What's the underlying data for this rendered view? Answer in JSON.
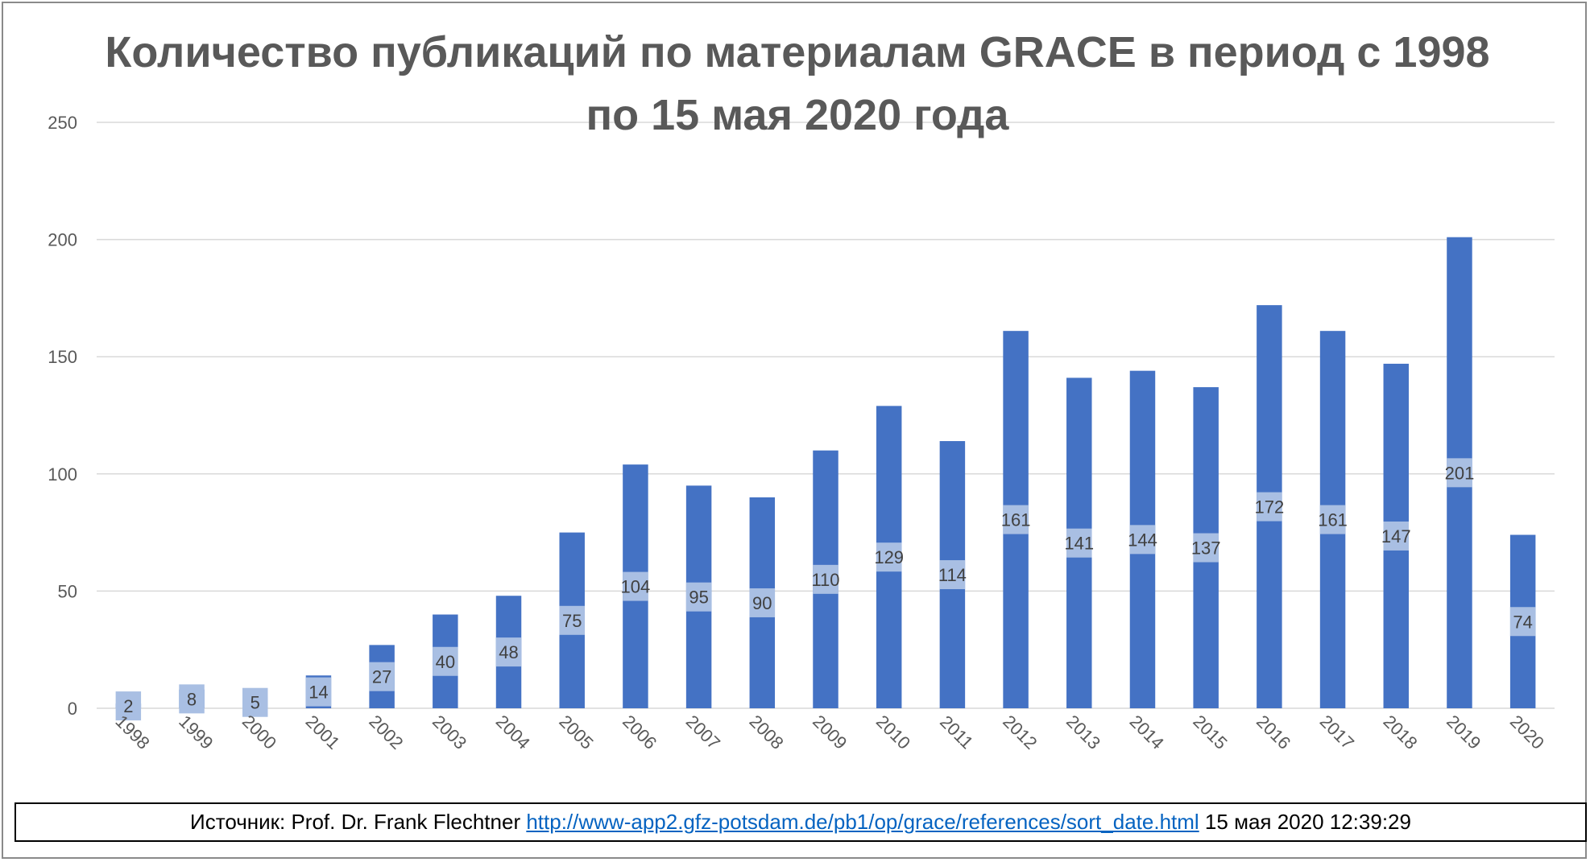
{
  "title": "Количество публикаций по материалам GRACE в период с 1998 по 15 мая 2020 года",
  "source": {
    "prefix": "Источник: Prof. Dr. Frank Flechtner",
    "url": "http://www-app2.gfz-potsdam.de/pb1/op/grace/references/sort_date.html",
    "suffix": "15 мая 2020 12:39:29"
  },
  "colors": {
    "bar": "#4472c4",
    "label_bg": "#a9bfe3",
    "grid": "#d9d9d9",
    "text": "#595959"
  },
  "chart_data": {
    "type": "bar",
    "title": "Количество публикаций по материалам GRACE в период с 1998 по 15 мая 2020 года",
    "xlabel": "",
    "ylabel": "",
    "categories": [
      "1998",
      "1999",
      "2000",
      "2001",
      "2002",
      "2003",
      "2004",
      "2005",
      "2006",
      "2007",
      "2008",
      "2009",
      "2010",
      "2011",
      "2012",
      "2013",
      "2014",
      "2015",
      "2016",
      "2017",
      "2018",
      "2019",
      "2020"
    ],
    "values": [
      2,
      8,
      5,
      14,
      27,
      40,
      48,
      75,
      104,
      95,
      90,
      110,
      129,
      114,
      161,
      141,
      144,
      137,
      172,
      161,
      147,
      201,
      74
    ],
    "ylim": [
      0,
      250
    ],
    "yticks": [
      0,
      50,
      100,
      150,
      200,
      250
    ],
    "grid": true,
    "legend": "none",
    "data_labels": true
  }
}
